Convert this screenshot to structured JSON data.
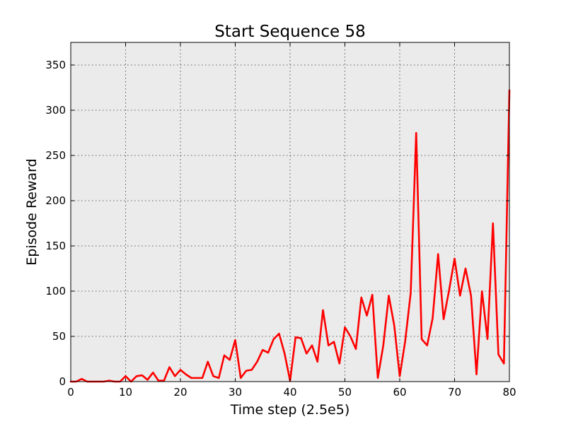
{
  "chart_data": {
    "type": "line",
    "title": "Start Sequence 58",
    "xlabel": "Time step (2.5e5)",
    "ylabel": "Episode Reward",
    "xlim": [
      0,
      80
    ],
    "ylim": [
      0,
      375
    ],
    "xticks": [
      0,
      10,
      20,
      30,
      40,
      50,
      60,
      70,
      80
    ],
    "yticks": [
      0,
      50,
      100,
      150,
      200,
      250,
      300,
      350
    ],
    "grid": true,
    "background_color": "#ebebeb",
    "series": [
      {
        "color": "#ff0000",
        "x": [
          0,
          1,
          2,
          3,
          4,
          5,
          6,
          7,
          8,
          9,
          10,
          11,
          12,
          13,
          14,
          15,
          16,
          17,
          18,
          19,
          20,
          21,
          22,
          23,
          24,
          25,
          26,
          27,
          28,
          29,
          30,
          31,
          32,
          33,
          34,
          35,
          36,
          37,
          38,
          39,
          40,
          41,
          42,
          43,
          44,
          45,
          46,
          47,
          48,
          49,
          50,
          51,
          52,
          53,
          54,
          55,
          56,
          57,
          58,
          59,
          60,
          61,
          62,
          63,
          64,
          65,
          66,
          67,
          68,
          69,
          70,
          71,
          72,
          73,
          74,
          75,
          76,
          77,
          78,
          79,
          80
        ],
        "y": [
          0,
          0,
          3,
          0,
          0,
          0,
          0,
          1,
          0,
          0,
          6,
          0,
          6,
          7,
          2,
          10,
          1,
          1,
          16,
          6,
          13,
          8,
          4,
          4,
          4,
          22,
          6,
          4,
          29,
          24,
          46,
          4,
          12,
          13,
          22,
          35,
          32,
          47,
          53,
          31,
          1,
          49,
          48,
          31,
          40,
          22,
          79,
          40,
          44,
          20,
          60,
          50,
          36,
          93,
          73,
          96,
          4,
          40,
          95,
          62,
          6,
          45,
          98,
          275,
          47,
          40,
          70,
          141,
          69,
          101,
          136,
          95,
          125,
          95,
          8,
          100,
          47,
          175,
          30,
          20,
          322
        ]
      }
    ]
  }
}
